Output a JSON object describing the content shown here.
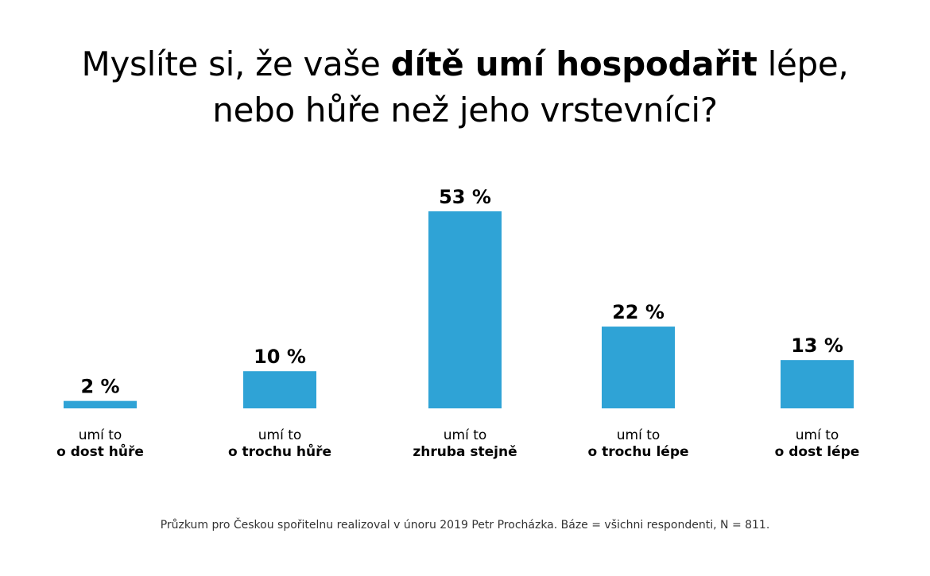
{
  "title": {
    "part1": "Myslíte si, že vaše ",
    "bold": "dítě umí hospodařit",
    "part2": " lépe,",
    "line2": "nebo hůře než jeho vrstevníci?"
  },
  "chart_data": {
    "type": "bar",
    "categories": [
      {
        "line1": "umí to",
        "line2": "o dost hůře"
      },
      {
        "line1": "umí to",
        "line2": "o trochu hůře"
      },
      {
        "line1": "umí to",
        "line2": "zhruba stejně"
      },
      {
        "line1": "umí to",
        "line2": "o trochu lépe"
      },
      {
        "line1": "umí to",
        "line2": "o dost lépe"
      }
    ],
    "values": [
      2,
      10,
      53,
      22,
      13
    ],
    "value_labels": [
      "2 %",
      "10 %",
      "53 %",
      "22 %",
      "13 %"
    ],
    "unit": "%",
    "ylim": [
      0,
      53
    ],
    "grid": false,
    "bar_color": "#2fa3d6"
  },
  "footnote": "Průzkum pro Českou spořitelnu realizoval v únoru 2019 Petr Procházka. Báze = všichni respondenti, N = 811."
}
